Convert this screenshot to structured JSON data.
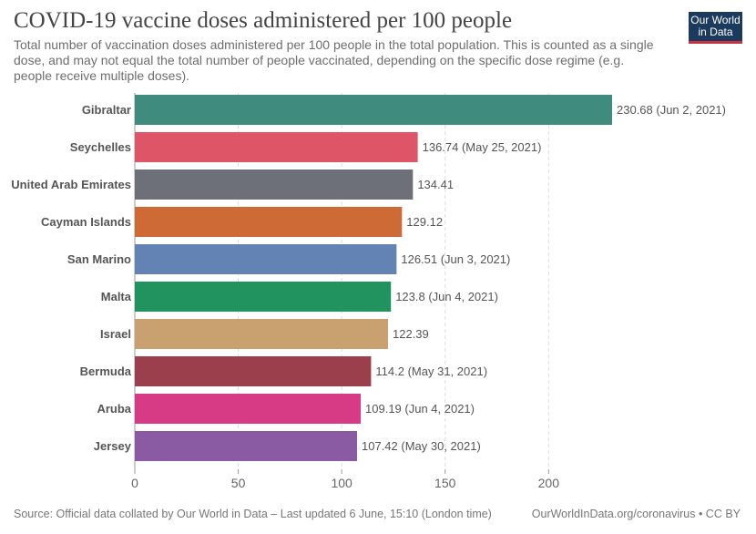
{
  "header": {
    "title": "COVID-19 vaccine doses administered per 100 people",
    "subtitle": "Total number of vaccination doses administered per 100 people in the total population. This is counted as a single dose, and may not equal the total number of people vaccinated, depending on the specific dose regime (e.g. people receive multiple doses).",
    "logo_line1": "Our World",
    "logo_line2": "in Data"
  },
  "footer": {
    "source": "Source: Official data collated by Our World in Data – Last updated 6 June, 15:10 (London time)",
    "credit": "OurWorldInData.org/coronavirus • CC BY"
  },
  "chart_data": {
    "type": "bar",
    "orientation": "horizontal",
    "categories": [
      "Gibraltar",
      "Seychelles",
      "United Arab Emirates",
      "Cayman Islands",
      "San Marino",
      "Malta",
      "Israel",
      "Bermuda",
      "Aruba",
      "Jersey"
    ],
    "values": [
      230.68,
      136.74,
      134.41,
      129.12,
      126.51,
      123.8,
      122.39,
      114.2,
      109.19,
      107.42
    ],
    "value_labels": [
      "230.68 (Jun 2, 2021)",
      "136.74 (May 25, 2021)",
      "134.41",
      "129.12",
      "126.51 (Jun 3, 2021)",
      "123.8 (Jun 4, 2021)",
      "122.39",
      "114.2 (May 31, 2021)",
      "109.19 (Jun 4, 2021)",
      "107.42 (May 30, 2021)"
    ],
    "colors": [
      "#3f8c7e",
      "#dd5567",
      "#6e7079",
      "#cd6a35",
      "#6383b4",
      "#20935e",
      "#c9a171",
      "#9a3f4b",
      "#d73b85",
      "#8a5aa2"
    ],
    "x_ticks": [
      0,
      50,
      100,
      150,
      200
    ],
    "xlim": [
      0,
      230.68
    ],
    "grid": "vertical dashed",
    "xlabel": "",
    "ylabel": ""
  }
}
